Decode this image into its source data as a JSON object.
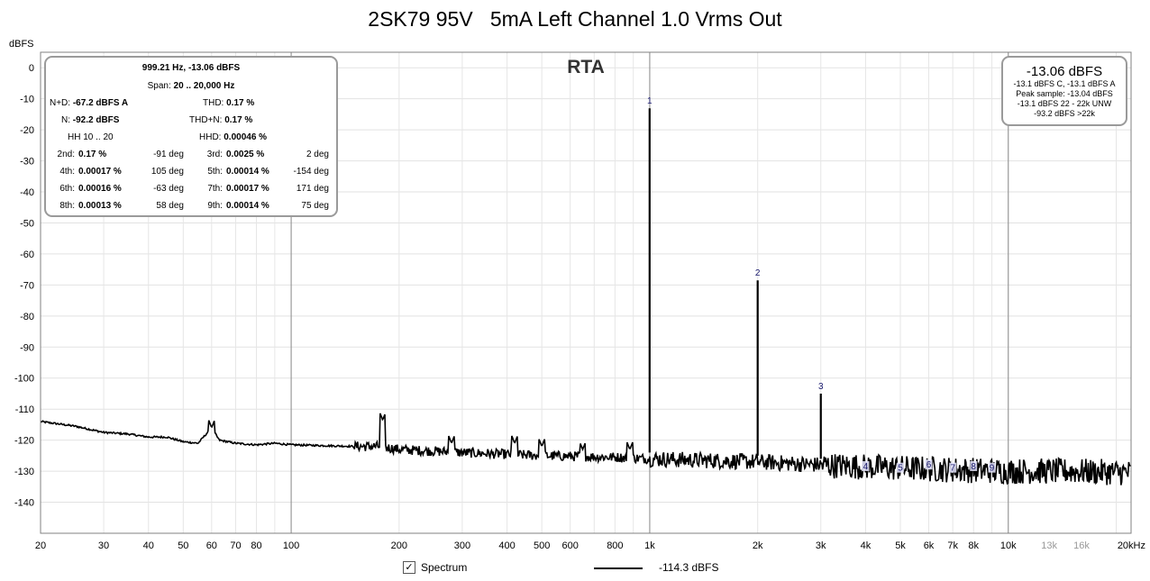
{
  "chart_data": {
    "type": "line",
    "title": "2SK79 95V   5mA Left Channel 1.0 Vrms Out",
    "ylabel": "dBFS",
    "xlabel": "",
    "x_scale": "log",
    "xlim": [
      20,
      22000
    ],
    "ylim": [
      -150,
      5
    ],
    "x_ticks": [
      {
        "v": 20,
        "label": "20",
        "major": true
      },
      {
        "v": 30,
        "label": "30",
        "major": true
      },
      {
        "v": 40,
        "label": "40",
        "major": true
      },
      {
        "v": 50,
        "label": "50",
        "major": true
      },
      {
        "v": 60,
        "label": "60",
        "major": true
      },
      {
        "v": 70,
        "label": "70",
        "major": true
      },
      {
        "v": 80,
        "label": "80",
        "major": true
      },
      {
        "v": 100,
        "label": "100",
        "major": true
      },
      {
        "v": 200,
        "label": "200",
        "major": true
      },
      {
        "v": 300,
        "label": "300",
        "major": true
      },
      {
        "v": 400,
        "label": "400",
        "major": true
      },
      {
        "v": 500,
        "label": "500",
        "major": true
      },
      {
        "v": 600,
        "label": "600",
        "major": true
      },
      {
        "v": 800,
        "label": "800",
        "major": true
      },
      {
        "v": 1000,
        "label": "1k",
        "major": true
      },
      {
        "v": 2000,
        "label": "2k",
        "major": true
      },
      {
        "v": 3000,
        "label": "3k",
        "major": true
      },
      {
        "v": 4000,
        "label": "4k",
        "major": true
      },
      {
        "v": 5000,
        "label": "5k",
        "major": true
      },
      {
        "v": 6000,
        "label": "6k",
        "major": true
      },
      {
        "v": 7000,
        "label": "7k",
        "major": true
      },
      {
        "v": 8000,
        "label": "8k",
        "major": true
      },
      {
        "v": 10000,
        "label": "10k",
        "major": true
      },
      {
        "v": 13000,
        "label": "13k",
        "major": false
      },
      {
        "v": 16000,
        "label": "16k",
        "major": false
      },
      {
        "v": 20000,
        "label": "20kHz",
        "major": true
      }
    ],
    "y_ticks": [
      0,
      -10,
      -20,
      -30,
      -40,
      -50,
      -60,
      -70,
      -80,
      -90,
      -100,
      -110,
      -120,
      -130,
      -140
    ],
    "grid": true,
    "series": [
      {
        "name": "Spectrum",
        "color": "#000000",
        "noise_floor": [
          [
            20,
            -114
          ],
          [
            25,
            -115.5
          ],
          [
            30,
            -117.5
          ],
          [
            35,
            -118
          ],
          [
            40,
            -119
          ],
          [
            45,
            -119
          ],
          [
            50,
            -120.5
          ],
          [
            55,
            -121
          ],
          [
            60,
            -116
          ],
          [
            63,
            -120
          ],
          [
            70,
            -121
          ],
          [
            80,
            -121.5
          ],
          [
            90,
            -121
          ],
          [
            100,
            -121.5
          ],
          [
            150,
            -122
          ],
          [
            175,
            -122
          ],
          [
            200,
            -123
          ],
          [
            300,
            -124
          ],
          [
            500,
            -125
          ],
          [
            800,
            -125.5
          ],
          [
            1000,
            -126
          ],
          [
            2000,
            -127
          ],
          [
            3000,
            -128
          ],
          [
            5000,
            -129
          ],
          [
            7000,
            -129.5
          ],
          [
            10000,
            -130
          ],
          [
            15000,
            -130
          ],
          [
            22000,
            -130.5
          ]
        ],
        "peaks": [
          {
            "label": "1",
            "freq": 999.21,
            "level": -13.06
          },
          {
            "label": "2",
            "freq": 2000,
            "level": -68.5
          },
          {
            "label": "3",
            "freq": 3000,
            "level": -105
          },
          {
            "label": "4",
            "freq": 4000,
            "level": -128.5
          },
          {
            "label": "5",
            "freq": 5000,
            "level": -129
          },
          {
            "label": "6",
            "freq": 6000,
            "level": -128
          },
          {
            "label": "7",
            "freq": 7000,
            "level": -129
          },
          {
            "label": "8",
            "freq": 8000,
            "level": -128.5
          },
          {
            "label": "9",
            "freq": 9000,
            "level": -129
          }
        ],
        "spurs": [
          {
            "freq": 60,
            "level": -116
          },
          {
            "freq": 180,
            "level": -113.5
          },
          {
            "freq": 280,
            "level": -121
          },
          {
            "freq": 420,
            "level": -121
          },
          {
            "freq": 500,
            "level": -122
          },
          {
            "freq": 650,
            "level": -123
          },
          {
            "freq": 880,
            "level": -123
          }
        ]
      }
    ],
    "legend": {
      "position": "bottom",
      "entries": [
        "Spectrum",
        "-114.3 dBFS"
      ]
    }
  },
  "rta_label": "RTA",
  "distortion_panel": {
    "header1": "999.21 Hz, -13.06 dBFS",
    "span_label": "Span:",
    "span_value": "20 .. 20,000 Hz",
    "nd_label": "N+D:",
    "nd_value": "-67.2 dBFS A",
    "thd_label": "THD:",
    "thd_value": "0.17 %",
    "n_label": "N:",
    "n_value": "-92.2 dBFS",
    "thdn_label": "THD+N:",
    "thdn_value": "0.17 %",
    "hh_label": "HH 10 .. 20",
    "hhd_label": "HHD:",
    "hhd_value": "0.00046 %",
    "rows": [
      {
        "l1": "2nd:",
        "v1": "0.17 %",
        "p1": "-91 deg",
        "l2": "3rd:",
        "v2": "0.0025 %",
        "p2": "2 deg"
      },
      {
        "l1": "4th:",
        "v1": "0.00017 %",
        "p1": "105 deg",
        "l2": "5th:",
        "v2": "0.00014 %",
        "p2": "-154 deg"
      },
      {
        "l1": "6th:",
        "v1": "0.00016 %",
        "p1": "-63 deg",
        "l2": "7th:",
        "v2": "0.00017 %",
        "p2": "171 deg"
      },
      {
        "l1": "8th:",
        "v1": "0.00013 %",
        "p1": "58 deg",
        "l2": "9th:",
        "v2": "0.00014 %",
        "p2": "75 deg"
      }
    ]
  },
  "level_panel": {
    "big": "-13.06 dBFS",
    "lines": [
      "-13.1 dBFS C, -13.1 dBFS A",
      "Peak sample: -13.04 dBFS",
      "-13.1 dBFS 22 - 22k UNW",
      "-93.2 dBFS >22k"
    ]
  },
  "legend": {
    "checkbox_checked": true,
    "checkmark": "✓",
    "spectrum_label": "Spectrum",
    "value": "-114.3 dBFS"
  }
}
